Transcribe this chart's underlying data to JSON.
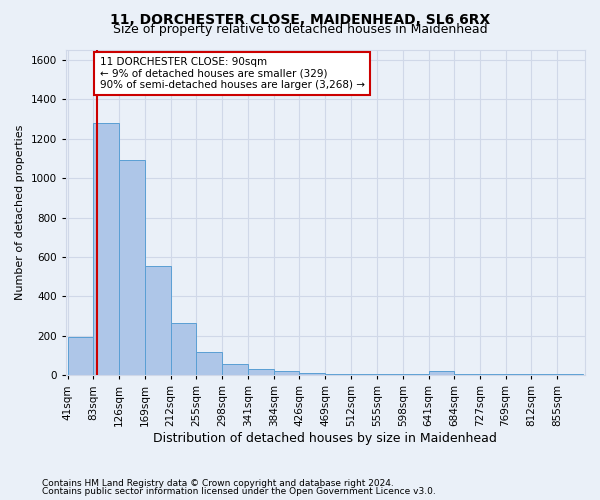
{
  "title1": "11, DORCHESTER CLOSE, MAIDENHEAD, SL6 6RX",
  "title2": "Size of property relative to detached houses in Maidenhead",
  "xlabel": "Distribution of detached houses by size in Maidenhead",
  "ylabel": "Number of detached properties",
  "footnote1": "Contains HM Land Registry data © Crown copyright and database right 2024.",
  "footnote2": "Contains public sector information licensed under the Open Government Licence v3.0.",
  "bar_edges": [
    41,
    83,
    126,
    169,
    212,
    255,
    298,
    341,
    384,
    426,
    469,
    512,
    555,
    598,
    641,
    684,
    727,
    769,
    812,
    855,
    898
  ],
  "bar_heights": [
    195,
    1280,
    1090,
    555,
    265,
    120,
    55,
    30,
    20,
    10,
    5,
    5,
    5,
    5,
    20,
    5,
    5,
    5,
    5,
    5
  ],
  "bar_color": "#aec6e8",
  "bar_edgecolor": "#5a9fd4",
  "property_line_x": 90,
  "property_line_color": "#cc0000",
  "annotation_line1": "11 DORCHESTER CLOSE: 90sqm",
  "annotation_line2": "← 9% of detached houses are smaller (329)",
  "annotation_line3": "90% of semi-detached houses are larger (3,268) →",
  "annotation_box_edgecolor": "#cc0000",
  "annotation_box_facecolor": "#ffffff",
  "ylim": [
    0,
    1650
  ],
  "yticks": [
    0,
    200,
    400,
    600,
    800,
    1000,
    1200,
    1400,
    1600
  ],
  "grid_color": "#d0d8e8",
  "background_color": "#eaf0f8",
  "title1_fontsize": 10,
  "title2_fontsize": 9,
  "xlabel_fontsize": 9,
  "ylabel_fontsize": 8,
  "tick_fontsize": 7.5,
  "footnote_fontsize": 6.5
}
